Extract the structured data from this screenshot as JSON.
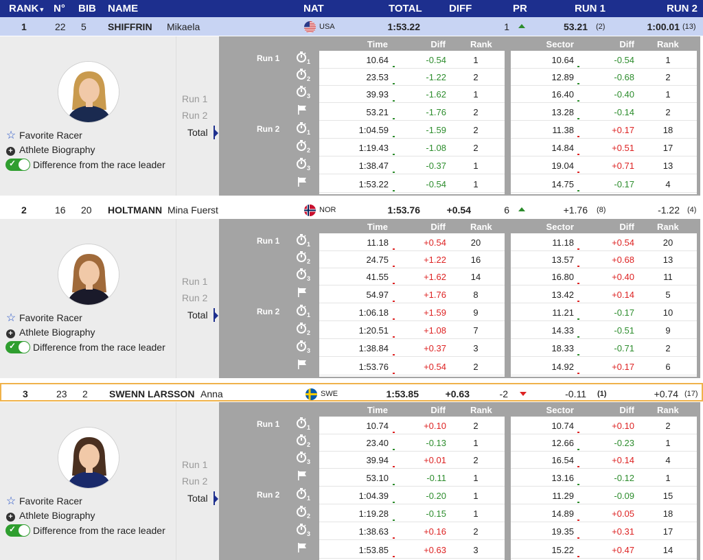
{
  "header": {
    "rank": "RANK",
    "rank_arrow": "▼",
    "no": "N°",
    "bib": "BIB",
    "name": "NAME",
    "nat": "NAT",
    "total": "TOTAL",
    "diff": "DIFF",
    "pr": "PR",
    "run1": "RUN 1",
    "run2": "RUN 2"
  },
  "detail_labels": {
    "time": "Time",
    "diff": "Diff",
    "rank": "Rank",
    "sector": "Sector",
    "run1": "Run 1",
    "run2": "Run 2",
    "total": "Total",
    "favorite": "Favorite Racer",
    "biography": "Athlete Biography",
    "difference": "Difference from the race leader"
  },
  "athletes": [
    {
      "rank": "1",
      "no": "22",
      "bib": "5",
      "surname": "SHIFFRIN",
      "firstname": "Mikaela",
      "nat": "USA",
      "total": "1:53.22",
      "diff": "",
      "pr": "1",
      "pr_dir": "up",
      "run1": "53.21",
      "run1_rank": "(2)",
      "run2": "1:00.01",
      "run2_rank": "(13)",
      "splits": [
        {
          "time": "10.64",
          "diff": "-0.54",
          "rank": "1",
          "sector": "10.64",
          "sdiff": "-0.54",
          "srank": "1"
        },
        {
          "time": "23.53",
          "diff": "-1.22",
          "rank": "2",
          "sector": "12.89",
          "sdiff": "-0.68",
          "srank": "2"
        },
        {
          "time": "39.93",
          "diff": "-1.62",
          "rank": "1",
          "sector": "16.40",
          "sdiff": "-0.40",
          "srank": "1"
        },
        {
          "time": "53.21",
          "diff": "-1.76",
          "rank": "2",
          "sector": "13.28",
          "sdiff": "-0.14",
          "srank": "2"
        },
        {
          "time": "1:04.59",
          "diff": "-1.59",
          "rank": "2",
          "sector": "11.38",
          "sdiff": "+0.17",
          "srank": "18"
        },
        {
          "time": "1:19.43",
          "diff": "-1.08",
          "rank": "2",
          "sector": "14.84",
          "sdiff": "+0.51",
          "srank": "17"
        },
        {
          "time": "1:38.47",
          "diff": "-0.37",
          "rank": "1",
          "sector": "19.04",
          "sdiff": "+0.71",
          "srank": "13"
        },
        {
          "time": "1:53.22",
          "diff": "-0.54",
          "rank": "1",
          "sector": "14.75",
          "sdiff": "-0.17",
          "srank": "4"
        }
      ]
    },
    {
      "rank": "2",
      "no": "16",
      "bib": "20",
      "surname": "HOLTMANN",
      "firstname": "Mina Fuerst",
      "nat": "NOR",
      "total": "1:53.76",
      "diff": "+0.54",
      "pr": "6",
      "pr_dir": "up",
      "run1": "+1.76",
      "run1_rank": "(8)",
      "run2": "-1.22",
      "run2_rank": "(4)",
      "splits": [
        {
          "time": "11.18",
          "diff": "+0.54",
          "rank": "20",
          "sector": "11.18",
          "sdiff": "+0.54",
          "srank": "20"
        },
        {
          "time": "24.75",
          "diff": "+1.22",
          "rank": "16",
          "sector": "13.57",
          "sdiff": "+0.68",
          "srank": "13"
        },
        {
          "time": "41.55",
          "diff": "+1.62",
          "rank": "14",
          "sector": "16.80",
          "sdiff": "+0.40",
          "srank": "11"
        },
        {
          "time": "54.97",
          "diff": "+1.76",
          "rank": "8",
          "sector": "13.42",
          "sdiff": "+0.14",
          "srank": "5"
        },
        {
          "time": "1:06.18",
          "diff": "+1.59",
          "rank": "9",
          "sector": "11.21",
          "sdiff": "-0.17",
          "srank": "10"
        },
        {
          "time": "1:20.51",
          "diff": "+1.08",
          "rank": "7",
          "sector": "14.33",
          "sdiff": "-0.51",
          "srank": "9"
        },
        {
          "time": "1:38.84",
          "diff": "+0.37",
          "rank": "3",
          "sector": "18.33",
          "sdiff": "-0.71",
          "srank": "2"
        },
        {
          "time": "1:53.76",
          "diff": "+0.54",
          "rank": "2",
          "sector": "14.92",
          "sdiff": "+0.17",
          "srank": "6"
        }
      ]
    },
    {
      "rank": "3",
      "no": "23",
      "bib": "2",
      "surname": "SWENN LARSSON",
      "firstname": "Anna",
      "nat": "SWE",
      "total": "1:53.85",
      "diff": "+0.63",
      "pr": "-2",
      "pr_dir": "down",
      "run1": "-0.11",
      "run1_rank": "(1)",
      "run2": "+0.74",
      "run2_rank": "(17)",
      "splits": [
        {
          "time": "10.74",
          "diff": "+0.10",
          "rank": "2",
          "sector": "10.74",
          "sdiff": "+0.10",
          "srank": "2"
        },
        {
          "time": "23.40",
          "diff": "-0.13",
          "rank": "1",
          "sector": "12.66",
          "sdiff": "-0.23",
          "srank": "1"
        },
        {
          "time": "39.94",
          "diff": "+0.01",
          "rank": "2",
          "sector": "16.54",
          "sdiff": "+0.14",
          "srank": "4"
        },
        {
          "time": "53.10",
          "diff": "-0.11",
          "rank": "1",
          "sector": "13.16",
          "sdiff": "-0.12",
          "srank": "1"
        },
        {
          "time": "1:04.39",
          "diff": "-0.20",
          "rank": "1",
          "sector": "11.29",
          "sdiff": "-0.09",
          "srank": "15"
        },
        {
          "time": "1:19.28",
          "diff": "-0.15",
          "rank": "1",
          "sector": "14.89",
          "sdiff": "+0.05",
          "srank": "18"
        },
        {
          "time": "1:38.63",
          "diff": "+0.16",
          "rank": "2",
          "sector": "19.35",
          "sdiff": "+0.31",
          "srank": "17"
        },
        {
          "time": "1:53.85",
          "diff": "+0.63",
          "rank": "3",
          "sector": "15.22",
          "sdiff": "+0.47",
          "srank": "14"
        }
      ]
    }
  ],
  "icons": {
    "split_icons": [
      "stopwatch-icon-1",
      "stopwatch-icon-2",
      "stopwatch-icon-3",
      "finish-flag-icon",
      "stopwatch-icon-1",
      "stopwatch-icon-2",
      "stopwatch-icon-3",
      "finish-flag-icon"
    ],
    "split_subscripts": [
      "1",
      "2",
      "3",
      "",
      "1",
      "2",
      "3",
      ""
    ]
  },
  "colors": {
    "header_bg": "#1d2f8e",
    "selected_row": "#c8d4f3",
    "positive": "#d22222",
    "negative": "#2c8c2c",
    "highlight_border": "#f0b24a"
  }
}
